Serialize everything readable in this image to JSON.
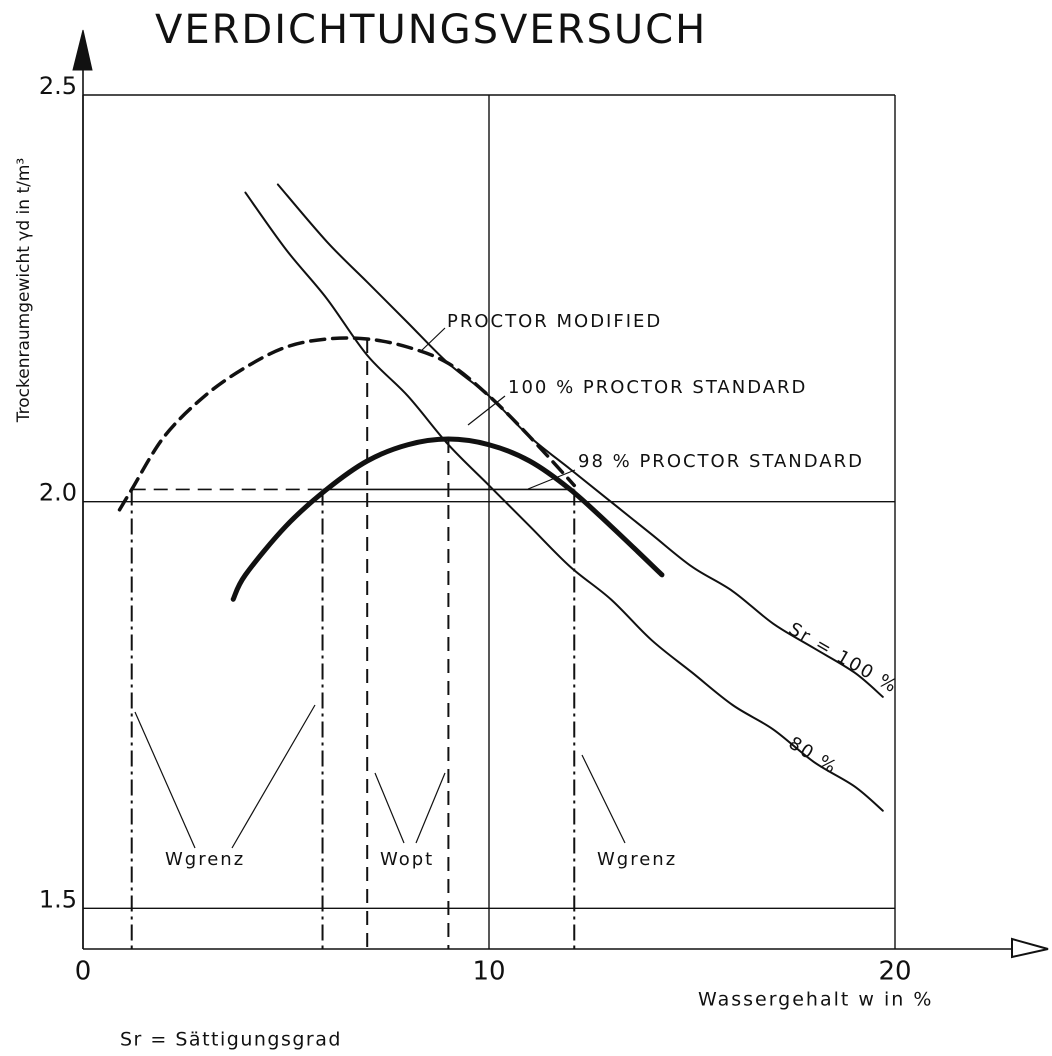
{
  "chart_data": {
    "type": "line",
    "title": "VERDICHTUNGSVERSUCH",
    "ylabel": "Trockenraumgewicht γd in t/m³",
    "xlabel": "Wassergehalt w in %",
    "footnote": "Sr = Sättigungsgrad",
    "xlim": [
      0,
      20
    ],
    "ylim": [
      1.45,
      2.5
    ],
    "xticks": [
      0,
      10,
      20
    ],
    "yticks": [
      1.5,
      {
        "value": 2,
        "label": "2.0"
      },
      2.5
    ],
    "grid": true,
    "color": "#111111",
    "series": [
      {
        "name": "PROCTOR MODIFIED",
        "style": "dashed",
        "width": 3.5,
        "x": [
          0.9,
          1.2,
          2,
          3,
          4,
          5,
          6,
          7,
          8,
          9,
          10,
          11,
          12.1
        ],
        "values": [
          1.99,
          2.015,
          2.08,
          2.13,
          2.165,
          2.19,
          2.2,
          2.2,
          2.19,
          2.17,
          2.13,
          2.08,
          2.02
        ]
      },
      {
        "name": "100 % PROCTOR STANDARD",
        "style": "solid",
        "width": 5,
        "x": [
          3.7,
          4,
          5,
          6,
          7,
          8,
          9,
          10,
          11,
          12,
          13,
          14.26
        ],
        "values": [
          1.88,
          1.91,
          1.97,
          2.015,
          2.05,
          2.07,
          2.077,
          2.07,
          2.05,
          2.015,
          1.97,
          1.91
        ]
      },
      {
        "name": "Sr = 100 %",
        "style": "solid",
        "width": 2,
        "x": [
          4.8,
          6,
          7,
          8,
          9,
          10,
          11,
          12,
          13,
          14,
          15,
          16,
          17,
          18,
          19,
          19.7
        ],
        "values": [
          2.39,
          2.32,
          2.27,
          2.22,
          2.17,
          2.13,
          2.08,
          2.04,
          2.0,
          1.96,
          1.92,
          1.89,
          1.85,
          1.82,
          1.79,
          1.76
        ]
      },
      {
        "name": "80 %",
        "style": "solid",
        "width": 2,
        "x": [
          4,
          5,
          6,
          7,
          8,
          9,
          10,
          11,
          12,
          13,
          14,
          15,
          16,
          17,
          18,
          19,
          19.7
        ],
        "values": [
          2.38,
          2.31,
          2.25,
          2.18,
          2.13,
          2.07,
          2.02,
          1.97,
          1.92,
          1.88,
          1.83,
          1.79,
          1.75,
          1.72,
          1.68,
          1.65,
          1.62
        ]
      }
    ],
    "hlines": [
      {
        "y": 2.015,
        "x": [
          1.2,
          5.9
        ],
        "style": "dashed"
      },
      {
        "y": 2.015,
        "x": [
          5.9,
          12.1
        ],
        "style": "solid"
      }
    ],
    "vlines": [
      {
        "x": 1.2,
        "y": 2.015,
        "style": "dashdot"
      },
      {
        "x": 5.9,
        "y": 2.015,
        "style": "dashdot"
      },
      {
        "x": 7,
        "y": 2.2,
        "style": "dashed"
      },
      {
        "x": 9,
        "y": 2.077,
        "style": "dashed"
      },
      {
        "x": 12.1,
        "y": 2.015,
        "style": "dashdot"
      }
    ],
    "annotations": [
      "98 % PROCTOR STANDARD",
      "Wgrenz",
      "Wopt",
      "Wgrenz"
    ]
  }
}
